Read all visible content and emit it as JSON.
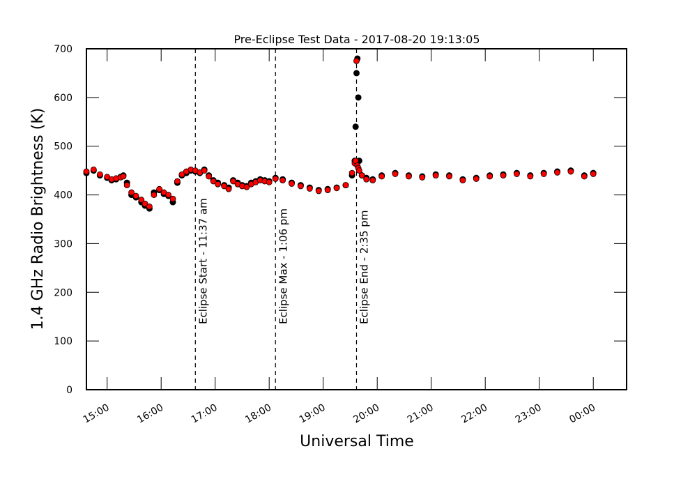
{
  "chart_data": {
    "type": "scatter",
    "title": "Pre-Eclipse Test Data - 2017-08-20 19:13:05",
    "xlabel": "Universal Time",
    "ylabel": "1.4 GHz Radio Brightness (K)",
    "ylim": [
      0,
      700
    ],
    "xlim": [
      "14:37",
      "00:37"
    ],
    "x_ticks": [
      "15:00",
      "16:00",
      "17:00",
      "18:00",
      "19:00",
      "20:00",
      "21:00",
      "22:00",
      "23:00",
      "00:00"
    ],
    "y_ticks": [
      0,
      100,
      200,
      300,
      400,
      500,
      600,
      700
    ],
    "grid": false,
    "annotations": [
      {
        "x": "16:38",
        "label": "Eclipse Start - 11:37 am"
      },
      {
        "x": "18:07",
        "label": "Eclipse Max - 1:06 pm"
      },
      {
        "x": "19:37",
        "label": "Eclipse End - 2:35 pm"
      }
    ],
    "series": [
      {
        "marker_color": "#000000",
        "x": [
          "14:37",
          "14:45",
          "14:52",
          "15:00",
          "15:05",
          "15:10",
          "15:15",
          "15:18",
          "15:22",
          "15:27",
          "15:32",
          "15:38",
          "15:42",
          "15:47",
          "15:52",
          "15:58",
          "16:03",
          "16:08",
          "16:13",
          "16:18",
          "16:23",
          "16:28",
          "16:33",
          "16:38",
          "16:43",
          "16:48",
          "16:53",
          "16:58",
          "17:03",
          "17:10",
          "17:15",
          "17:20",
          "17:25",
          "17:30",
          "17:35",
          "17:40",
          "17:45",
          "17:50",
          "17:55",
          "18:00",
          "18:07",
          "18:15",
          "18:25",
          "18:35",
          "18:45",
          "18:55",
          "19:05",
          "19:15",
          "19:25",
          "19:32",
          "19:35",
          "19:36",
          "19:37",
          "19:38",
          "19:39",
          "19:40",
          "19:43",
          "19:48",
          "19:55",
          "20:05",
          "20:20",
          "20:35",
          "20:50",
          "21:05",
          "21:20",
          "21:35",
          "21:50",
          "22:05",
          "22:20",
          "22:35",
          "22:50",
          "23:05",
          "23:20",
          "23:35",
          "23:50",
          "24:00"
        ],
        "y": [
          445,
          450,
          440,
          435,
          430,
          432,
          437,
          440,
          425,
          400,
          395,
          385,
          378,
          372,
          405,
          410,
          402,
          398,
          385,
          425,
          440,
          445,
          450,
          448,
          445,
          452,
          440,
          430,
          425,
          420,
          415,
          430,
          425,
          420,
          418,
          425,
          428,
          432,
          430,
          428,
          435,
          432,
          425,
          420,
          415,
          410,
          412,
          415,
          420,
          440,
          470,
          540,
          650,
          680,
          600,
          470,
          440,
          435,
          432,
          440,
          445,
          440,
          438,
          442,
          440,
          432,
          435,
          440,
          442,
          445,
          440,
          445,
          448,
          450,
          440,
          445
        ]
      },
      {
        "marker_color": "#ff0000",
        "x": [
          "14:37",
          "14:45",
          "14:52",
          "15:00",
          "15:05",
          "15:10",
          "15:15",
          "15:18",
          "15:22",
          "15:27",
          "15:32",
          "15:38",
          "15:42",
          "15:47",
          "15:52",
          "15:58",
          "16:03",
          "16:08",
          "16:13",
          "16:18",
          "16:23",
          "16:28",
          "16:33",
          "16:38",
          "16:43",
          "16:48",
          "16:53",
          "16:58",
          "17:03",
          "17:10",
          "17:15",
          "17:20",
          "17:25",
          "17:30",
          "17:35",
          "17:40",
          "17:45",
          "17:50",
          "17:55",
          "18:00",
          "18:07",
          "18:15",
          "18:25",
          "18:35",
          "18:45",
          "18:55",
          "19:05",
          "19:15",
          "19:25",
          "19:32",
          "19:35",
          "19:36",
          "19:37",
          "19:38",
          "19:39",
          "19:40",
          "19:43",
          "19:48",
          "19:55",
          "20:05",
          "20:20",
          "20:35",
          "20:50",
          "21:05",
          "21:20",
          "21:35",
          "21:50",
          "22:05",
          "22:20",
          "22:35",
          "22:50",
          "23:05",
          "23:20",
          "23:35",
          "23:50",
          "24:00"
        ],
        "y": [
          448,
          452,
          442,
          437,
          432,
          434,
          436,
          438,
          420,
          405,
          398,
          390,
          382,
          376,
          400,
          412,
          405,
          400,
          392,
          428,
          442,
          448,
          452,
          450,
          446,
          450,
          438,
          428,
          422,
          418,
          412,
          428,
          422,
          418,
          416,
          422,
          426,
          430,
          428,
          426,
          433,
          430,
          423,
          418,
          413,
          408,
          410,
          414,
          420,
          445,
          465,
          470,
          675,
          460,
          455,
          450,
          440,
          432,
          430,
          438,
          443,
          438,
          436,
          440,
          438,
          430,
          433,
          438,
          440,
          443,
          438,
          443,
          446,
          448,
          438,
          443
        ]
      }
    ]
  }
}
